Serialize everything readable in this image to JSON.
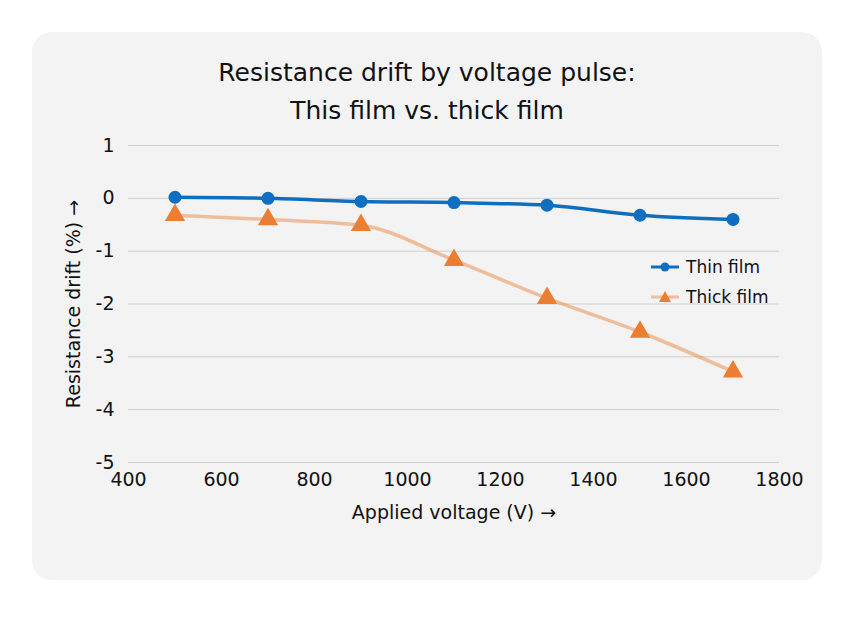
{
  "chart_data": {
    "type": "line",
    "title": "Resistance drift by voltage pulse:\nThis film vs. thick film",
    "x_label": "Applied voltage (V)",
    "y_label": "Resistance drift (%)",
    "x": [
      500,
      700,
      900,
      1100,
      1300,
      1500,
      1700
    ],
    "series": [
      {
        "name": "Thin film",
        "color": "#0e6fc0",
        "marker": "circle",
        "values": [
          0.02,
          0,
          -0.06,
          -0.08,
          -0.13,
          -0.32,
          -0.4
        ]
      },
      {
        "name": "Thick film",
        "color": "#ed7d31",
        "marker": "triangle",
        "values": [
          -0.32,
          -0.4,
          -0.51,
          -1.17,
          -1.89,
          -2.53,
          -3.28
        ]
      }
    ],
    "xlim": [
      400,
      1800
    ],
    "xticks": [
      400,
      600,
      800,
      1000,
      1200,
      1400,
      1600,
      1800
    ],
    "ylim": [
      -5,
      1
    ],
    "yticks": [
      -5,
      -4,
      -3,
      -2,
      -1,
      0,
      1
    ],
    "grid": true,
    "legend": "right"
  }
}
